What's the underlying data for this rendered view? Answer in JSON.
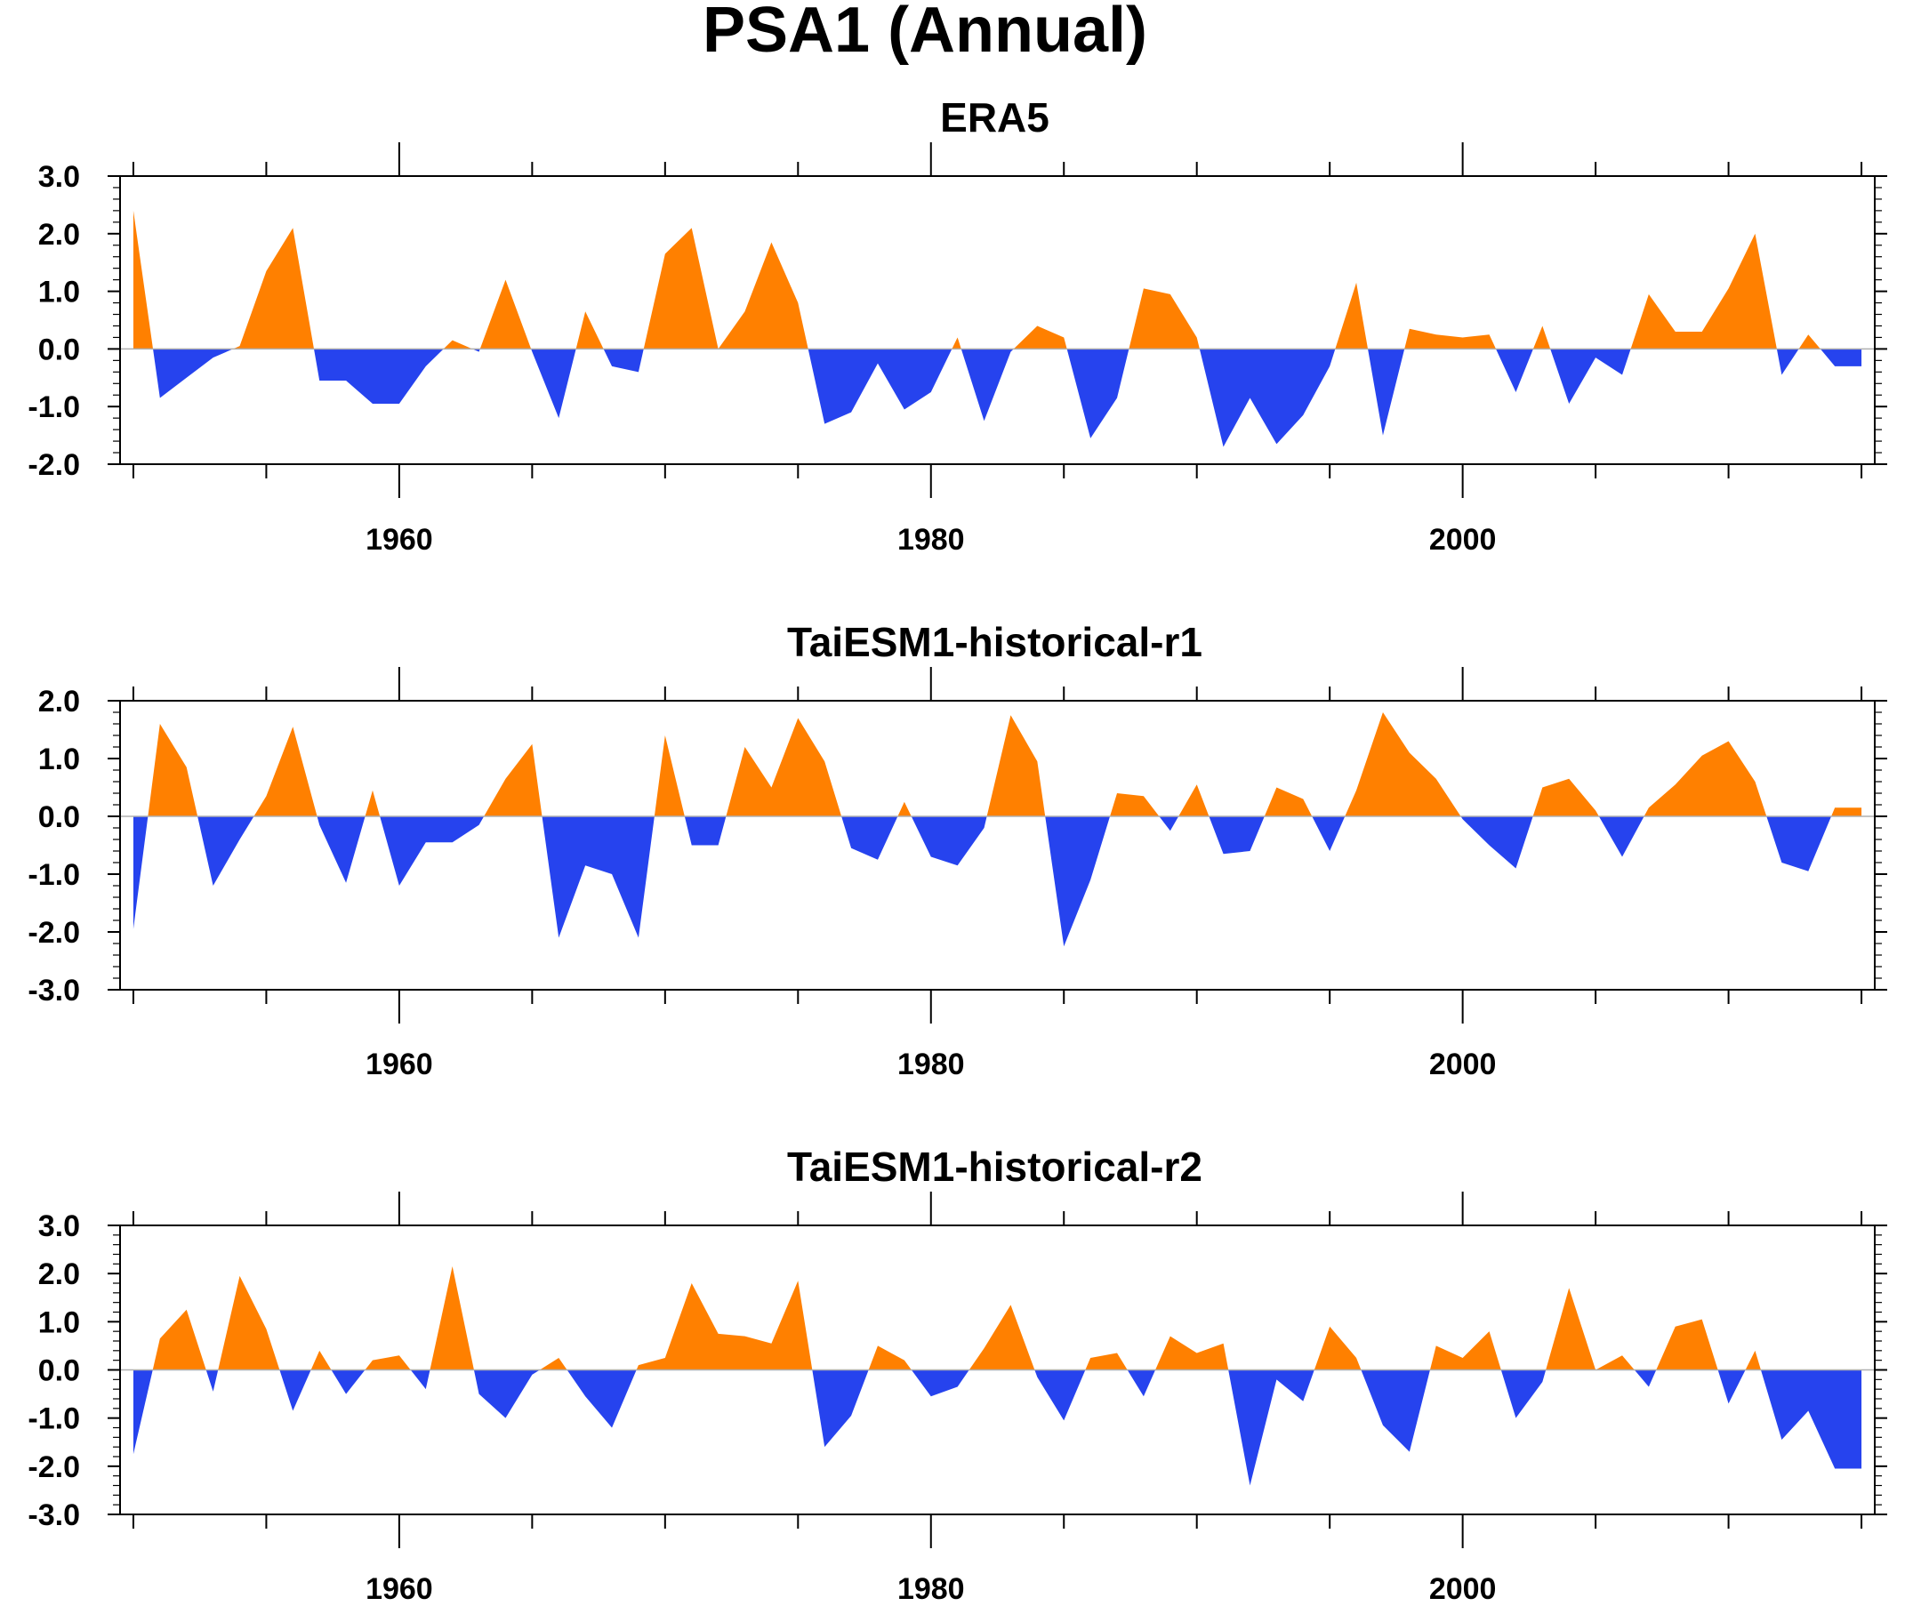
{
  "title": "PSA1 (Annual)",
  "colors": {
    "positive": "#ff8000",
    "negative": "#2643ee",
    "axis": "#000000",
    "zero_line": "#b0b0b0"
  },
  "chart_data": [
    {
      "type": "area",
      "title": "ERA5",
      "xlabel": "",
      "ylabel": "",
      "xlim": [
        1949.5,
        2015.5
      ],
      "ylim": [
        -2.0,
        3.0
      ],
      "yticks": [
        "-2.0",
        "-1.0",
        "0.0",
        "1.0",
        "2.0",
        "3.0"
      ],
      "xticks": [
        "1960",
        "1980",
        "2000"
      ],
      "fill": "orange above zero, blue below zero",
      "x": [
        1950,
        1951,
        1952,
        1953,
        1954,
        1955,
        1956,
        1957,
        1958,
        1959,
        1960,
        1961,
        1962,
        1963,
        1964,
        1965,
        1966,
        1967,
        1968,
        1969,
        1970,
        1971,
        1972,
        1973,
        1974,
        1975,
        1976,
        1977,
        1978,
        1979,
        1980,
        1981,
        1982,
        1983,
        1984,
        1985,
        1986,
        1987,
        1988,
        1989,
        1990,
        1991,
        1992,
        1993,
        1994,
        1995,
        1996,
        1997,
        1998,
        1999,
        2000,
        2001,
        2002,
        2003,
        2004,
        2005,
        2006,
        2007,
        2008,
        2009,
        2010,
        2011,
        2012,
        2013,
        2014,
        2015
      ],
      "values": [
        2.4,
        -0.85,
        -0.5,
        -0.15,
        0.05,
        1.35,
        2.1,
        -0.55,
        -0.55,
        -0.95,
        -0.95,
        -0.3,
        0.15,
        -0.05,
        1.2,
        -0.05,
        -1.2,
        0.65,
        -0.3,
        -0.4,
        1.65,
        2.1,
        0.0,
        0.65,
        1.85,
        0.8,
        -1.3,
        -1.1,
        -0.25,
        -1.05,
        -0.75,
        0.2,
        -1.25,
        -0.05,
        0.4,
        0.2,
        -1.55,
        -0.85,
        1.05,
        0.95,
        0.2,
        -1.7,
        -0.85,
        -1.65,
        -1.15,
        -0.3,
        1.15,
        -1.5,
        0.35,
        0.25,
        0.2,
        0.25,
        -0.75,
        0.4,
        -0.95,
        -0.15,
        -0.45,
        0.95,
        0.3,
        0.3,
        1.05,
        2.0,
        -0.45,
        0.25,
        -0.3,
        -0.3
      ]
    },
    {
      "type": "area",
      "title": "TaiESM1-historical-r1",
      "xlabel": "",
      "ylabel": "",
      "xlim": [
        1949.5,
        2015.5
      ],
      "ylim": [
        -3.0,
        2.0
      ],
      "yticks": [
        "-3.0",
        "-2.0",
        "-1.0",
        "0.0",
        "1.0",
        "2.0"
      ],
      "xticks": [
        "1960",
        "1980",
        "2000"
      ],
      "fill": "orange above zero, blue below zero",
      "x": [
        1950,
        1951,
        1952,
        1953,
        1954,
        1955,
        1956,
        1957,
        1958,
        1959,
        1960,
        1961,
        1962,
        1963,
        1964,
        1965,
        1966,
        1967,
        1968,
        1969,
        1970,
        1971,
        1972,
        1973,
        1974,
        1975,
        1976,
        1977,
        1978,
        1979,
        1980,
        1981,
        1982,
        1983,
        1984,
        1985,
        1986,
        1987,
        1988,
        1989,
        1990,
        1991,
        1992,
        1993,
        1994,
        1995,
        1996,
        1997,
        1998,
        1999,
        2000,
        2001,
        2002,
        2003,
        2004,
        2005,
        2006,
        2007,
        2008,
        2009,
        2010,
        2011,
        2012,
        2013,
        2014,
        2015
      ],
      "values": [
        -1.95,
        1.6,
        0.85,
        -1.2,
        -0.4,
        0.35,
        1.55,
        -0.15,
        -1.15,
        0.45,
        -1.2,
        -0.45,
        -0.45,
        -0.15,
        0.65,
        1.25,
        -2.1,
        -0.85,
        -1.0,
        -2.1,
        1.4,
        -0.5,
        -0.5,
        1.2,
        0.5,
        1.7,
        0.95,
        -0.55,
        -0.75,
        0.25,
        -0.7,
        -0.85,
        -0.2,
        1.75,
        0.95,
        -2.25,
        -1.1,
        0.4,
        0.35,
        -0.25,
        0.55,
        -0.65,
        -0.6,
        0.5,
        0.3,
        -0.6,
        0.45,
        1.8,
        1.1,
        0.65,
        -0.05,
        -0.5,
        -0.9,
        0.5,
        0.65,
        0.1,
        -0.7,
        0.15,
        0.55,
        1.05,
        1.3,
        0.6,
        -0.8,
        -0.95,
        0.15,
        0.15
      ]
    },
    {
      "type": "area",
      "title": "TaiESM1-historical-r2",
      "xlabel": "",
      "ylabel": "",
      "xlim": [
        1949.5,
        2015.5
      ],
      "ylim": [
        -3.0,
        3.0
      ],
      "yticks": [
        "-3.0",
        "-2.0",
        "-1.0",
        "0.0",
        "1.0",
        "2.0",
        "3.0"
      ],
      "xticks": [
        "1960",
        "1980",
        "2000"
      ],
      "fill": "orange above zero, blue below zero",
      "x": [
        1950,
        1951,
        1952,
        1953,
        1954,
        1955,
        1956,
        1957,
        1958,
        1959,
        1960,
        1961,
        1962,
        1963,
        1964,
        1965,
        1966,
        1967,
        1968,
        1969,
        1970,
        1971,
        1972,
        1973,
        1974,
        1975,
        1976,
        1977,
        1978,
        1979,
        1980,
        1981,
        1982,
        1983,
        1984,
        1985,
        1986,
        1987,
        1988,
        1989,
        1990,
        1991,
        1992,
        1993,
        1994,
        1995,
        1996,
        1997,
        1998,
        1999,
        2000,
        2001,
        2002,
        2003,
        2004,
        2005,
        2006,
        2007,
        2008,
        2009,
        2010,
        2011,
        2012,
        2013,
        2014,
        2015
      ],
      "values": [
        -1.75,
        0.65,
        1.25,
        -0.45,
        1.95,
        0.85,
        -0.85,
        0.4,
        -0.5,
        0.2,
        0.3,
        -0.4,
        2.15,
        -0.5,
        -1.0,
        -0.1,
        0.25,
        -0.55,
        -1.2,
        0.1,
        0.25,
        1.8,
        0.75,
        0.7,
        0.55,
        1.85,
        -1.6,
        -0.95,
        0.5,
        0.2,
        -0.55,
        -0.35,
        0.45,
        1.35,
        -0.15,
        -1.05,
        0.25,
        0.35,
        -0.55,
        0.7,
        0.35,
        0.55,
        -2.4,
        -0.2,
        -0.65,
        0.9,
        0.25,
        -1.15,
        -1.7,
        0.5,
        0.25,
        0.8,
        -1.0,
        -0.25,
        1.7,
        0.0,
        0.3,
        -0.35,
        0.9,
        1.05,
        -0.7,
        0.4,
        -1.45,
        -0.85,
        -2.05,
        -2.05
      ]
    }
  ]
}
